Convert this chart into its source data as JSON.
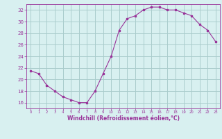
{
  "x": [
    0,
    1,
    2,
    3,
    4,
    5,
    6,
    7,
    8,
    9,
    10,
    11,
    12,
    13,
    14,
    15,
    16,
    17,
    18,
    19,
    20,
    21,
    22,
    23
  ],
  "y": [
    21.5,
    21.0,
    19.0,
    18.0,
    17.0,
    16.5,
    16.0,
    16.0,
    18.0,
    21.0,
    24.0,
    28.5,
    30.5,
    31.0,
    32.0,
    32.5,
    32.5,
    32.0,
    32.0,
    31.5,
    31.0,
    29.5,
    28.5,
    26.5
  ],
  "line_color": "#993399",
  "marker": "s",
  "marker_size": 2,
  "bg_color": "#d8f0f0",
  "grid_color": "#aacccc",
  "xlabel": "Windchill (Refroidissement éolien,°C)",
  "xlabel_color": "#993399",
  "tick_color": "#993399",
  "ylim": [
    15,
    33
  ],
  "yticks": [
    16,
    18,
    20,
    22,
    24,
    26,
    28,
    30,
    32
  ],
  "xlim": [
    -0.5,
    23.5
  ],
  "xticks": [
    0,
    1,
    2,
    3,
    4,
    5,
    6,
    7,
    8,
    9,
    10,
    11,
    12,
    13,
    14,
    15,
    16,
    17,
    18,
    19,
    20,
    21,
    22,
    23
  ],
  "xtick_labels": [
    "0",
    "1",
    "2",
    "3",
    "4",
    "5",
    "6",
    "7",
    "8",
    "9",
    "10",
    "11",
    "12",
    "13",
    "14",
    "15",
    "16",
    "17",
    "18",
    "19",
    "20",
    "21",
    "22",
    "23"
  ]
}
